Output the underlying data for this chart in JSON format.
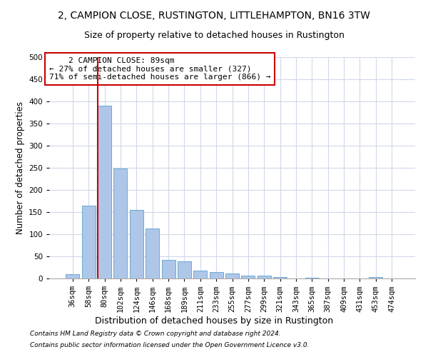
{
  "title1": "2, CAMPION CLOSE, RUSTINGTON, LITTLEHAMPTON, BN16 3TW",
  "title2": "Size of property relative to detached houses in Rustington",
  "xlabel": "Distribution of detached houses by size in Rustington",
  "ylabel": "Number of detached properties",
  "categories": [
    "36sqm",
    "58sqm",
    "80sqm",
    "102sqm",
    "124sqm",
    "146sqm",
    "168sqm",
    "189sqm",
    "211sqm",
    "233sqm",
    "255sqm",
    "277sqm",
    "299sqm",
    "321sqm",
    "343sqm",
    "365sqm",
    "387sqm",
    "409sqm",
    "431sqm",
    "453sqm",
    "474sqm"
  ],
  "values": [
    10,
    165,
    390,
    248,
    155,
    113,
    42,
    38,
    18,
    15,
    12,
    7,
    6,
    4,
    0,
    2,
    0,
    0,
    0,
    4,
    0
  ],
  "bar_color": "#aec6e8",
  "bar_edge_color": "#6aaad4",
  "grid_color": "#d0d8e8",
  "background_color": "#ffffff",
  "annotation_line1": "    2 CAMPION CLOSE: 89sqm",
  "annotation_line2": "← 27% of detached houses are smaller (327)",
  "annotation_line3": "71% of semi-detached houses are larger (866) →",
  "annotation_box_color": "#cc0000",
  "vline_color": "#cc0000",
  "vline_index": 2,
  "ylim": [
    0,
    500
  ],
  "yticks": [
    0,
    50,
    100,
    150,
    200,
    250,
    300,
    350,
    400,
    450,
    500
  ],
  "footer1": "Contains HM Land Registry data © Crown copyright and database right 2024.",
  "footer2": "Contains public sector information licensed under the Open Government Licence v3.0.",
  "title1_fontsize": 10,
  "title2_fontsize": 9,
  "xlabel_fontsize": 9,
  "ylabel_fontsize": 8.5,
  "tick_fontsize": 7.5,
  "annot_fontsize": 8,
  "footer_fontsize": 6.5
}
